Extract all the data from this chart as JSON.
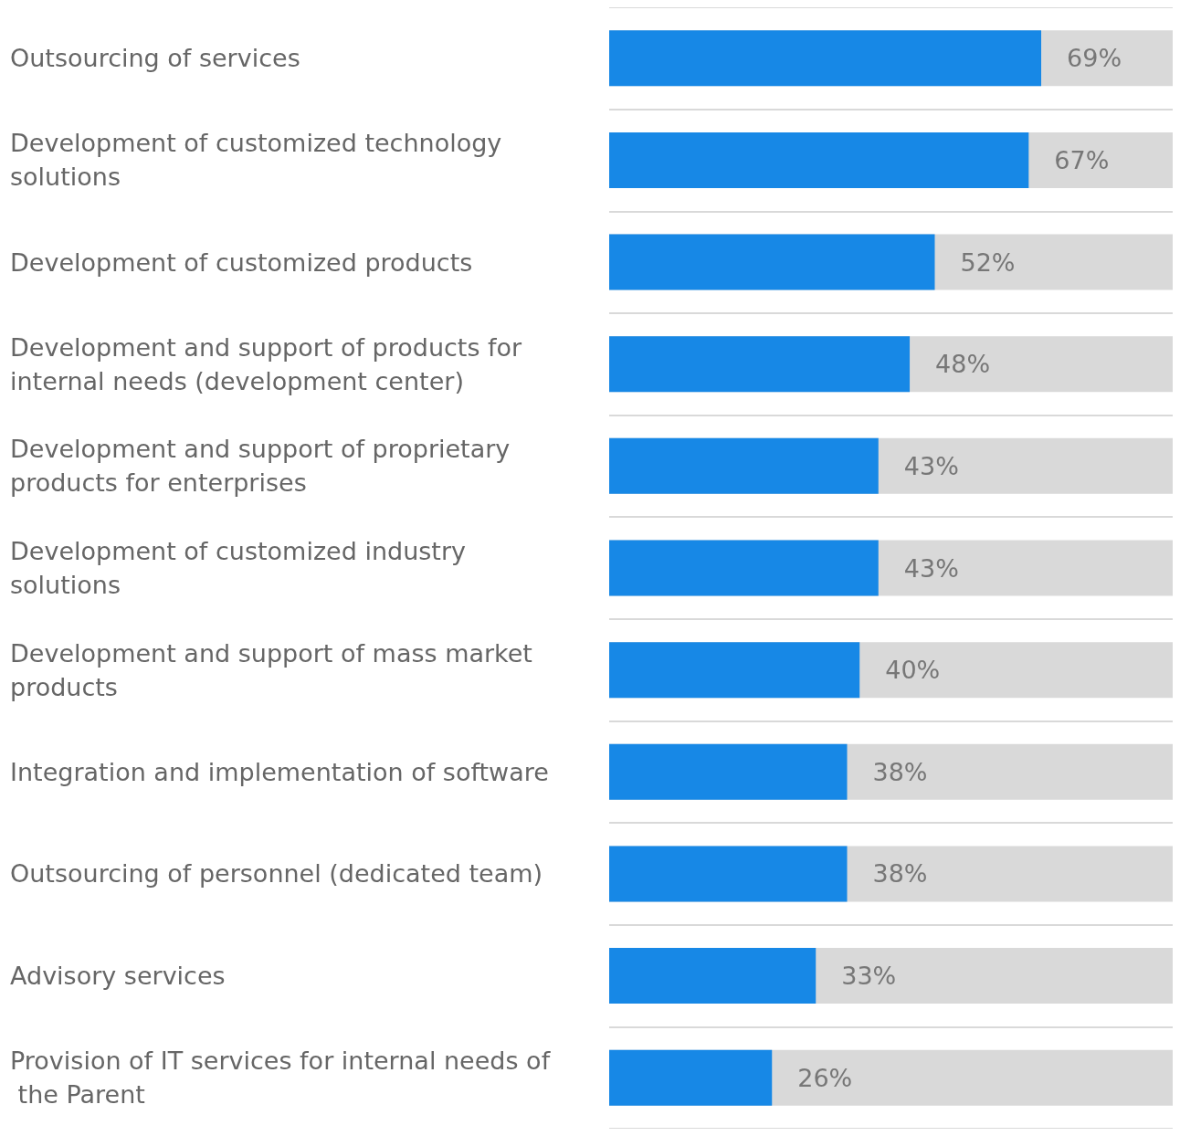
{
  "chart_data": {
    "type": "bar",
    "orientation": "horizontal",
    "categories": [
      "Outsourcing of services",
      "Development of customized technology solutions",
      "Development of customized products",
      "Development and support of products for internal needs (development center)",
      "Development and support of proprietary products for enterprises",
      "Development of customized industry solutions",
      "Development and support of mass market products",
      "Integration and implementation of software",
      "Outsourcing of personnel (dedicated team)",
      "Advisory services",
      "Provision of IT services for internal needs of the Parent"
    ],
    "values": [
      69,
      67,
      52,
      48,
      43,
      43,
      40,
      38,
      38,
      33,
      26
    ],
    "value_labels": [
      "69%",
      "67%",
      "52%",
      "48%",
      "43%",
      "43%",
      "40%",
      "38%",
      "38%",
      "33%",
      "26%"
    ],
    "color": "#1788e6",
    "xlim": [
      0,
      90
    ],
    "grid": "y"
  }
}
